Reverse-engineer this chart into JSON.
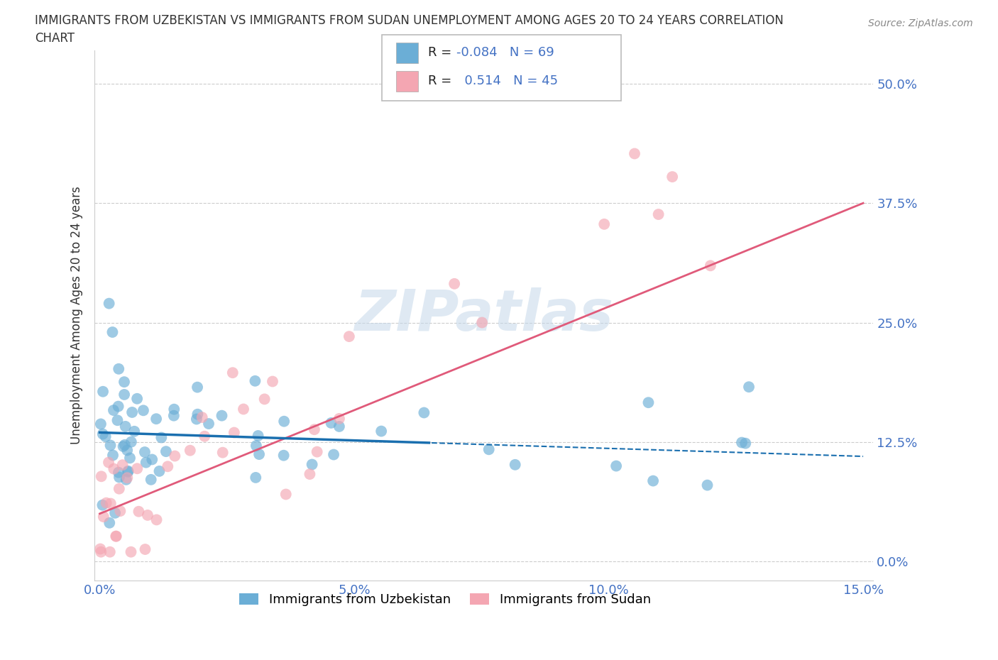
{
  "title_line1": "IMMIGRANTS FROM UZBEKISTAN VS IMMIGRANTS FROM SUDAN UNEMPLOYMENT AMONG AGES 20 TO 24 YEARS CORRELATION",
  "title_line2": "CHART",
  "source": "Source: ZipAtlas.com",
  "ylabel": "Unemployment Among Ages 20 to 24 years",
  "xlim": [
    0.0,
    0.15
  ],
  "ylim": [
    0.0,
    0.52
  ],
  "yticks": [
    0.0,
    0.125,
    0.25,
    0.375,
    0.5
  ],
  "ytick_labels": [
    "0.0%",
    "12.5%",
    "25.0%",
    "37.5%",
    "50.0%"
  ],
  "xticks": [
    0.0,
    0.05,
    0.1,
    0.15
  ],
  "xtick_labels": [
    "0.0%",
    "5.0%",
    "10.0%",
    "15.0%"
  ],
  "uzbekistan_color": "#6baed6",
  "sudan_color": "#f4a6b2",
  "uzbekistan_line_color": "#1a6faf",
  "sudan_line_color": "#e05a7a",
  "uzbekistan_R": -0.084,
  "uzbekistan_N": 69,
  "sudan_R": 0.514,
  "sudan_N": 45,
  "legend_label_uzbekistan": "Immigrants from Uzbekistan",
  "legend_label_sudan": "Immigrants from Sudan",
  "watermark": "ZIPatlas",
  "tick_color": "#4472c4",
  "grid_color": "#cccccc",
  "title_fontsize": 12,
  "ylabel_fontsize": 12,
  "tick_fontsize": 13
}
